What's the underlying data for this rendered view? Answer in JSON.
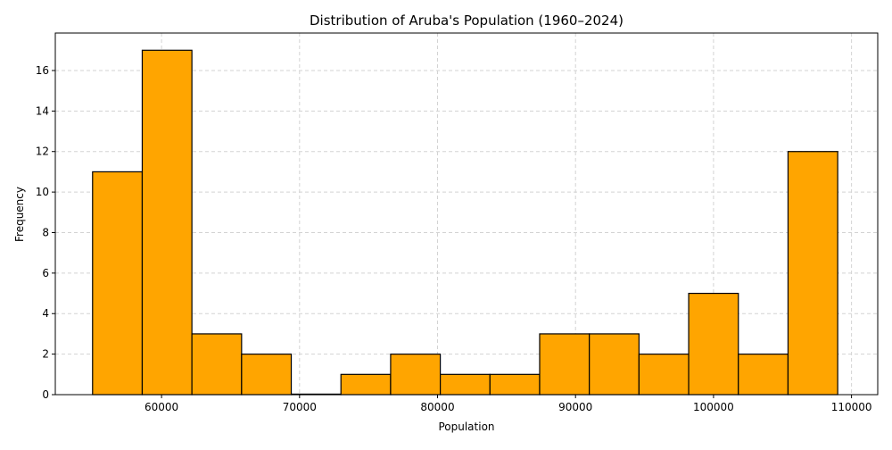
{
  "chart_data": {
    "type": "bar",
    "title": "Distribution of Aruba's Population (1960–2024)",
    "xlabel": "Population",
    "ylabel": "Frequency",
    "xlim": [
      52300,
      111900
    ],
    "ylim": [
      0,
      17.85
    ],
    "x_ticks": [
      60000,
      70000,
      80000,
      90000,
      100000,
      110000
    ],
    "y_ticks": [
      0,
      2,
      4,
      6,
      8,
      10,
      12,
      14,
      16
    ],
    "grid": true,
    "bar_color": "#ffa500",
    "edge_color": "#000000",
    "bins": [
      {
        "start": 55000,
        "end": 58600,
        "count": 11
      },
      {
        "start": 58600,
        "end": 62200,
        "count": 17
      },
      {
        "start": 62200,
        "end": 65800,
        "count": 3
      },
      {
        "start": 65800,
        "end": 69400,
        "count": 2
      },
      {
        "start": 69400,
        "end": 73000,
        "count": 0
      },
      {
        "start": 73000,
        "end": 76600,
        "count": 1
      },
      {
        "start": 76600,
        "end": 80200,
        "count": 2
      },
      {
        "start": 80200,
        "end": 83800,
        "count": 1
      },
      {
        "start": 83800,
        "end": 87400,
        "count": 1
      },
      {
        "start": 87400,
        "end": 91000,
        "count": 3
      },
      {
        "start": 91000,
        "end": 94600,
        "count": 3
      },
      {
        "start": 94600,
        "end": 98200,
        "count": 2
      },
      {
        "start": 98200,
        "end": 101800,
        "count": 5
      },
      {
        "start": 101800,
        "end": 105400,
        "count": 2
      },
      {
        "start": 105400,
        "end": 109000,
        "count": 12
      }
    ]
  }
}
